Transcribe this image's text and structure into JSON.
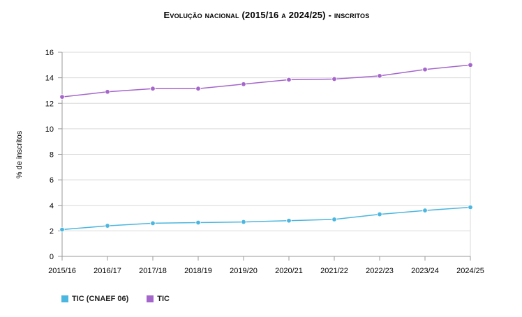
{
  "chart_data": {
    "type": "line",
    "title": "Evolução nacional (2015/16 a 2024/25) - inscritos",
    "xlabel": "",
    "ylabel": "% de inscritos",
    "categories": [
      "2015/16",
      "2016/17",
      "2017/18",
      "2018/19",
      "2019/20",
      "2020/21",
      "2021/22",
      "2022/23",
      "2023/24",
      "2024/25"
    ],
    "ylim": [
      0,
      16
    ],
    "yticks": [
      0,
      2,
      4,
      6,
      8,
      10,
      12,
      14,
      16
    ],
    "grid": true,
    "legend_position": "bottom-left",
    "series": [
      {
        "name": "TIC (CNAEF 06)",
        "color": "#4BB6DF",
        "values": [
          2.1,
          2.4,
          2.6,
          2.65,
          2.7,
          2.8,
          2.9,
          3.3,
          3.6,
          3.85
        ]
      },
      {
        "name": "TIC",
        "color": "#A566CC",
        "values": [
          12.5,
          12.9,
          13.15,
          13.15,
          13.5,
          13.85,
          13.9,
          14.15,
          14.65,
          15.0
        ]
      }
    ]
  }
}
